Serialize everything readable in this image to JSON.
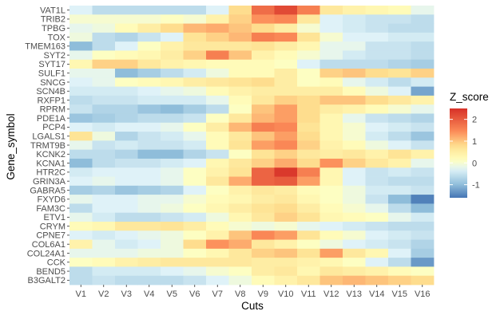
{
  "chart_data": {
    "type": "heatmap",
    "xlabel": "Cuts",
    "ylabel": "Gene_symbol",
    "x_categories": [
      "V1",
      "V2",
      "V3",
      "V4",
      "V5",
      "V6",
      "V7",
      "V8",
      "V9",
      "V10",
      "V11",
      "V12",
      "V13",
      "V14",
      "V15",
      "V16"
    ],
    "y_categories": [
      "VAT1L",
      "TRIB2",
      "TPBG",
      "TOX",
      "TMEM163",
      "SYT2",
      "SYT17",
      "SULF1",
      "SNCG",
      "SCN4B",
      "RXFP1",
      "RPRM",
      "PDE1A",
      "PCP4",
      "LGALS1",
      "TRMT9B",
      "KCNK2",
      "KCNA1",
      "HTR2C",
      "GRIN3A",
      "GABRA5",
      "FXYD6",
      "FAM3C",
      "ETV1",
      "CRYM",
      "CPNE7",
      "COL6A1",
      "COL24A1",
      "CCK",
      "BEND5",
      "B3GALT2"
    ],
    "values": [
      [
        -0.3,
        -0.6,
        -0.6,
        -0.6,
        -0.6,
        -0.6,
        -0.3,
        0.8,
        1.8,
        2.2,
        1.6,
        0.6,
        0.4,
        0.3,
        0.2,
        -0.2
      ],
      [
        0.0,
        0.0,
        0.0,
        0.0,
        0.1,
        0.0,
        0.4,
        0.9,
        1.4,
        1.5,
        0.6,
        -0.3,
        -0.4,
        -0.5,
        -0.5,
        -0.6
      ],
      [
        -0.2,
        -0.1,
        0.2,
        0.5,
        0.8,
        1.1,
        1.2,
        1.0,
        0.8,
        0.5,
        0.0,
        -0.3,
        -0.4,
        -0.5,
        -0.6,
        -0.6
      ],
      [
        -0.1,
        -0.6,
        -0.7,
        -0.5,
        -0.3,
        0.7,
        0.9,
        1.1,
        1.6,
        1.5,
        0.7,
        0.0,
        -0.3,
        -0.3,
        -0.4,
        -0.4
      ],
      [
        -1.0,
        -0.6,
        -0.3,
        0.1,
        0.4,
        0.6,
        0.6,
        0.6,
        0.7,
        0.5,
        0.3,
        -0.2,
        -0.2,
        -0.5,
        -0.5,
        -0.6
      ],
      [
        -0.2,
        0.1,
        0.2,
        0.3,
        0.5,
        0.9,
        1.6,
        1.0,
        0.4,
        0.2,
        0.0,
        -0.2,
        -0.4,
        -0.5,
        -0.5,
        -0.6
      ],
      [
        0.3,
        0.9,
        0.9,
        0.6,
        0.4,
        0.3,
        0.2,
        0.2,
        0.2,
        0.1,
        -0.3,
        -0.6,
        -0.6,
        -0.6,
        -0.7,
        -0.8
      ],
      [
        -0.2,
        -0.2,
        -1.0,
        -0.8,
        -0.6,
        -0.4,
        -0.1,
        0.2,
        0.2,
        0.5,
        0.1,
        0.9,
        1.0,
        0.8,
        0.7,
        0.9
      ],
      [
        -0.3,
        -0.2,
        0.1,
        0.2,
        0.3,
        0.5,
        0.6,
        0.7,
        0.8,
        0.5,
        0.1,
        0.2,
        -0.2,
        -0.4,
        -0.6,
        -0.4
      ],
      [
        -0.4,
        -0.4,
        -0.4,
        -0.3,
        -0.2,
        -0.1,
        0.2,
        0.4,
        0.5,
        0.5,
        0.5,
        0.5,
        0.2,
        -0.1,
        -0.3,
        -1.2
      ],
      [
        -0.6,
        -0.5,
        -0.5,
        -0.4,
        -0.4,
        -0.4,
        -0.2,
        0.2,
        0.6,
        0.9,
        0.8,
        1.0,
        1.0,
        0.8,
        0.6,
        0.4
      ],
      [
        -0.5,
        -0.7,
        -0.7,
        -0.9,
        -1.0,
        -0.8,
        -0.6,
        0.1,
        1.0,
        1.3,
        0.8,
        0.5,
        0.4,
        0.2,
        0.0,
        -0.2
      ],
      [
        -0.9,
        -0.8,
        -0.7,
        -0.6,
        -0.6,
        -0.5,
        0.1,
        0.6,
        1.1,
        1.3,
        0.8,
        0.3,
        -0.2,
        -0.5,
        -0.6,
        -0.7
      ],
      [
        -0.3,
        -0.4,
        -0.3,
        -0.3,
        -0.2,
        0.1,
        0.5,
        1.1,
        1.6,
        1.5,
        0.7,
        0.3,
        0.0,
        -0.3,
        -0.4,
        -0.5
      ],
      [
        0.7,
        -0.1,
        -0.7,
        -0.5,
        -0.4,
        -0.2,
        0.2,
        0.6,
        1.0,
        1.3,
        0.8,
        0.3,
        0.0,
        -0.4,
        -0.6,
        -0.9
      ],
      [
        -0.2,
        -0.5,
        -0.4,
        -0.5,
        -0.5,
        -0.4,
        0.2,
        0.7,
        1.3,
        1.5,
        0.9,
        0.4,
        0.2,
        -0.1,
        -0.3,
        -0.5
      ],
      [
        -0.6,
        -0.6,
        -0.7,
        -1.0,
        -1.0,
        -0.7,
        -0.5,
        0.1,
        0.7,
        0.9,
        0.6,
        0.5,
        0.6,
        0.4,
        0.7,
        0.4
      ],
      [
        -1.0,
        -0.6,
        -0.5,
        -0.5,
        -0.4,
        -0.3,
        0.3,
        0.6,
        0.9,
        1.2,
        0.8,
        1.4,
        0.9,
        0.6,
        0.4,
        -0.2
      ],
      [
        -0.4,
        -0.3,
        -0.3,
        -0.3,
        -0.2,
        0.1,
        0.4,
        0.7,
        1.9,
        2.4,
        1.6,
        0.3,
        -0.3,
        -0.5,
        -0.4,
        -0.5
      ],
      [
        -0.3,
        -0.2,
        -0.3,
        -0.3,
        -0.2,
        0.1,
        0.6,
        1.2,
        1.9,
        2.0,
        1.3,
        0.3,
        -0.3,
        -0.5,
        -0.6,
        -0.6
      ],
      [
        -0.8,
        -0.7,
        -0.9,
        -0.8,
        -0.7,
        -0.3,
        0.1,
        0.4,
        0.6,
        0.5,
        0.2,
        0.1,
        -0.1,
        -0.4,
        -0.4,
        -0.5
      ],
      [
        -0.2,
        -0.3,
        -0.3,
        -0.2,
        -0.2,
        0.0,
        0.2,
        0.3,
        0.5,
        0.6,
        0.3,
        0.1,
        -0.1,
        -0.5,
        -1.0,
        -1.5
      ],
      [
        -0.6,
        -0.3,
        -0.3,
        -0.2,
        -0.1,
        0.1,
        0.3,
        0.5,
        0.7,
        0.8,
        0.5,
        0.2,
        0.0,
        -0.2,
        -0.6,
        -1.0
      ],
      [
        -0.2,
        -0.4,
        -0.6,
        -0.6,
        -0.5,
        -0.4,
        -0.1,
        0.3,
        0.6,
        0.9,
        0.7,
        0.3,
        0.2,
        0.1,
        -0.2,
        -0.4
      ],
      [
        0.2,
        0.3,
        0.6,
        0.6,
        0.7,
        0.5,
        0.2,
        0.0,
        -0.1,
        0.0,
        -0.2,
        -0.3,
        -0.4,
        -0.5,
        -0.6,
        -0.6
      ],
      [
        -0.3,
        -0.4,
        -0.3,
        -0.2,
        -0.1,
        0.1,
        0.4,
        1.0,
        1.5,
        1.3,
        0.7,
        0.2,
        0.0,
        -0.3,
        -0.4,
        -0.5
      ],
      [
        0.4,
        -0.2,
        -0.4,
        -0.3,
        -0.1,
        0.8,
        1.4,
        1.2,
        0.6,
        0.4,
        0.1,
        -0.1,
        -0.3,
        -0.4,
        -0.5,
        -0.7
      ],
      [
        -0.2,
        -0.2,
        -0.2,
        -0.1,
        -0.1,
        0.1,
        0.3,
        0.6,
        0.9,
        1.0,
        0.7,
        1.3,
        0.6,
        0.3,
        -0.3,
        -0.8
      ],
      [
        0.1,
        0.2,
        0.4,
        0.5,
        0.6,
        0.6,
        0.6,
        0.6,
        0.5,
        0.5,
        0.4,
        0.3,
        0.1,
        -0.3,
        -0.6,
        -1.3
      ],
      [
        -0.6,
        -0.4,
        -0.4,
        -0.4,
        -0.3,
        -0.2,
        0.0,
        0.1,
        0.5,
        0.6,
        0.3,
        0.6,
        0.5,
        0.4,
        0.2,
        0.1
      ],
      [
        -0.6,
        -0.5,
        -0.6,
        -0.6,
        -0.6,
        -0.5,
        -0.3,
        -0.1,
        0.2,
        0.4,
        0.6,
        1.0,
        1.1,
        1.0,
        0.9,
        0.8
      ]
    ],
    "color_scale": {
      "name": "RdYlBu (reversed)",
      "low_color": "#4575b4",
      "mid_color": "#ffffbf",
      "high_color": "#d73027",
      "range": [
        -1.6,
        2.5
      ]
    },
    "legend": {
      "title": "Z_score",
      "ticks": [
        2,
        1,
        0,
        -1
      ],
      "tick_labels": [
        "2",
        "1",
        "0",
        "-1"
      ],
      "position": "right"
    },
    "grid": false
  }
}
